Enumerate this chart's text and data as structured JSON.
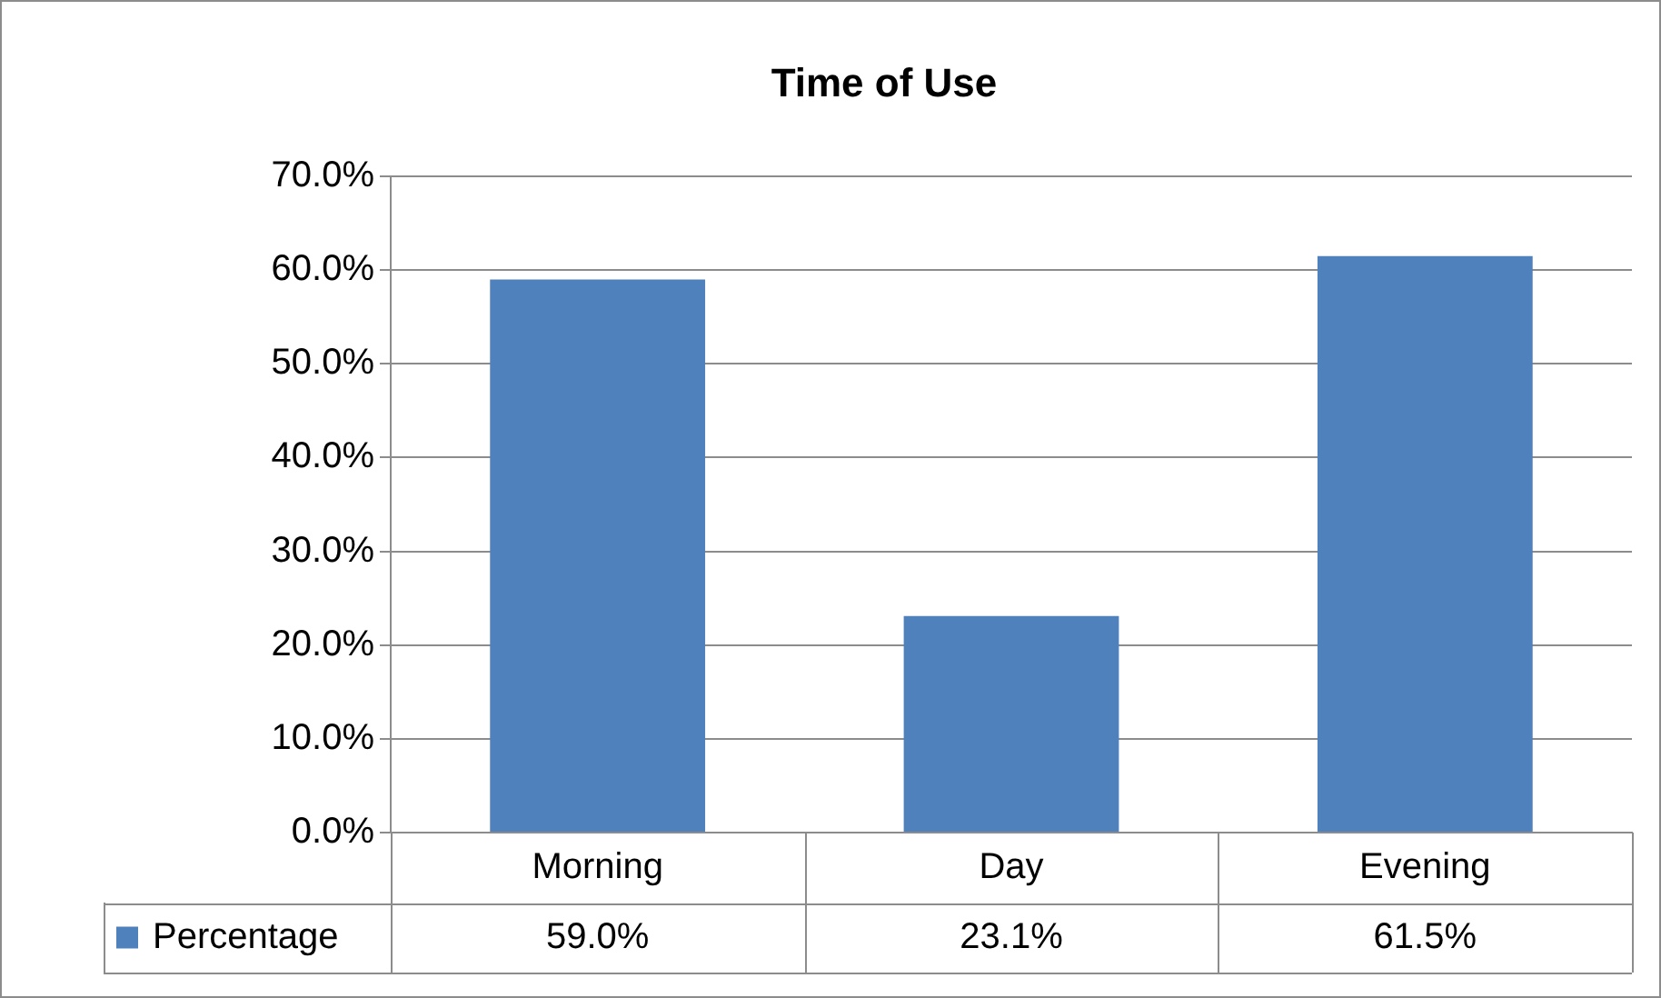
{
  "chart_data": {
    "type": "bar",
    "title": "Time of Use",
    "categories": [
      "Morning",
      "Day",
      "Evening"
    ],
    "series": [
      {
        "name": "Percentage",
        "color": "#4f81bd",
        "values": [
          59.0,
          23.1,
          61.5
        ]
      }
    ],
    "value_labels": [
      "59.0%",
      "23.1%",
      "61.5%"
    ],
    "ylim": [
      0,
      70
    ],
    "yticks": [
      {
        "value": 0,
        "label": "0.0%"
      },
      {
        "value": 10,
        "label": "10.0%"
      },
      {
        "value": 20,
        "label": "20.0%"
      },
      {
        "value": 30,
        "label": "30.0%"
      },
      {
        "value": 40,
        "label": "40.0%"
      },
      {
        "value": 50,
        "label": "50.0%"
      },
      {
        "value": 60,
        "label": "60.0%"
      },
      {
        "value": 70,
        "label": "70.0%"
      }
    ],
    "grid": "y",
    "legend": "bottom"
  }
}
